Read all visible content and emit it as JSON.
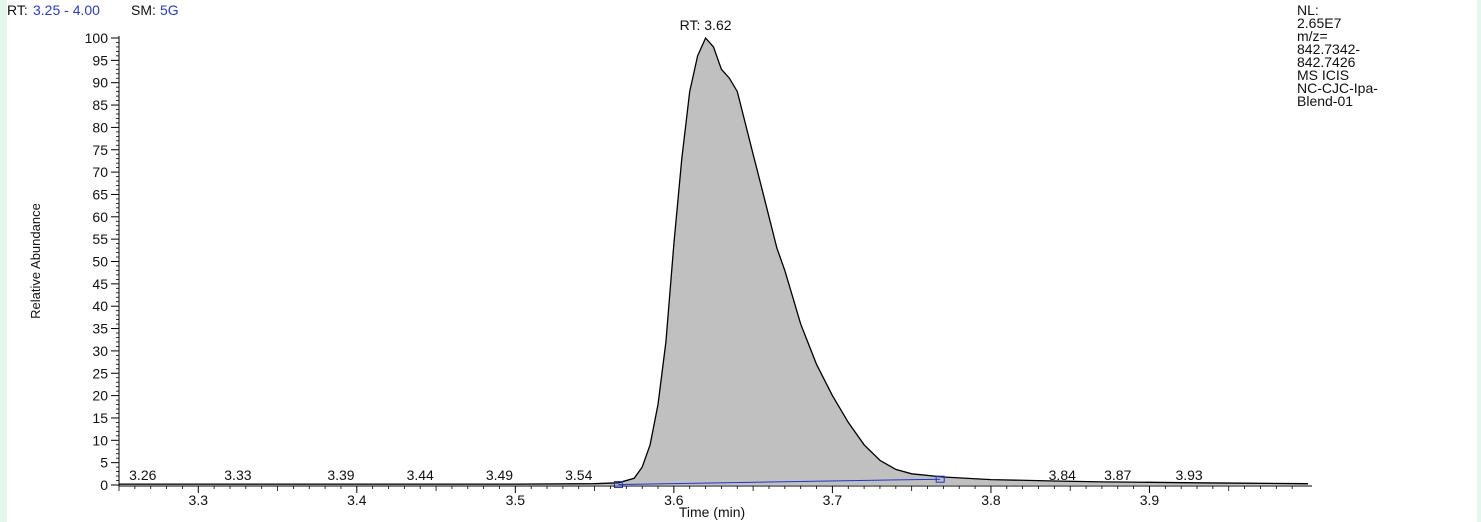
{
  "header": {
    "rt_label": "RT:",
    "rt_range": "3.25 - 4.00",
    "sm_label": "SM:",
    "sm_value": "5G"
  },
  "info_box": [
    "NL:",
    "2.65E7",
    "m/z=",
    "842.7342-",
    "842.7426",
    "MS  ICIS",
    "NC-CJC-Ipa-",
    "Blend-01"
  ],
  "colors": {
    "fill": "#c0c0c0",
    "trace": "#000000",
    "baseline": "#1f35c8",
    "header_value": "#2a3fb0",
    "page_background": "#e3f7ee"
  },
  "chart_data": {
    "type": "area",
    "xlabel": "Time (min)",
    "ylabel": "Relative Abundance",
    "xlim": [
      3.25,
      4.0
    ],
    "ylim": [
      0,
      100
    ],
    "x_ticks": [
      "3.3",
      "3.4",
      "3.5",
      "3.6",
      "3.7",
      "3.8",
      "3.9"
    ],
    "y_ticks": [
      "0",
      "5",
      "10",
      "15",
      "20",
      "25",
      "30",
      "35",
      "40",
      "45",
      "50",
      "55",
      "60",
      "65",
      "70",
      "75",
      "80",
      "85",
      "90",
      "95",
      "100"
    ],
    "series": [
      {
        "x": [
          3.25,
          3.3,
          3.4,
          3.5,
          3.55,
          3.565,
          3.575,
          3.58,
          3.585,
          3.59,
          3.595,
          3.6,
          3.605,
          3.61,
          3.615,
          3.62,
          3.625,
          3.63,
          3.635,
          3.64,
          3.645,
          3.65,
          3.655,
          3.66,
          3.665,
          3.67,
          3.675,
          3.68,
          3.69,
          3.7,
          3.71,
          3.72,
          3.73,
          3.74,
          3.75,
          3.77,
          3.8,
          3.84,
          3.87,
          3.9,
          3.93,
          3.96,
          4.0
        ],
        "y": [
          0.2,
          0.2,
          0.2,
          0.2,
          0.3,
          0.5,
          1.5,
          4,
          9,
          18,
          32,
          54,
          73,
          88,
          96,
          100,
          98,
          93,
          91,
          88,
          81,
          74,
          67,
          60,
          53,
          48,
          42,
          36,
          27,
          20,
          14,
          9,
          5.5,
          3.5,
          2.5,
          1.8,
          1.2,
          0.9,
          0.7,
          0.6,
          0.5,
          0.4,
          0.3
        ]
      }
    ],
    "baseline": {
      "x_start": 3.565,
      "y_start": 0.1,
      "x_end": 3.768,
      "y_end": 1.3
    },
    "peak": {
      "label": "RT: 3.62",
      "x": 3.62,
      "y": 100
    },
    "peak_labels": [
      {
        "label": "3.26",
        "x": 3.265
      },
      {
        "label": "3.33",
        "x": 3.325
      },
      {
        "label": "3.39",
        "x": 3.39
      },
      {
        "label": "3.44",
        "x": 3.44
      },
      {
        "label": "3.49",
        "x": 3.49
      },
      {
        "label": "3.54",
        "x": 3.54
      },
      {
        "label": "3.84",
        "x": 3.845
      },
      {
        "label": "3.87",
        "x": 3.88
      },
      {
        "label": "3.93",
        "x": 3.925
      }
    ]
  }
}
